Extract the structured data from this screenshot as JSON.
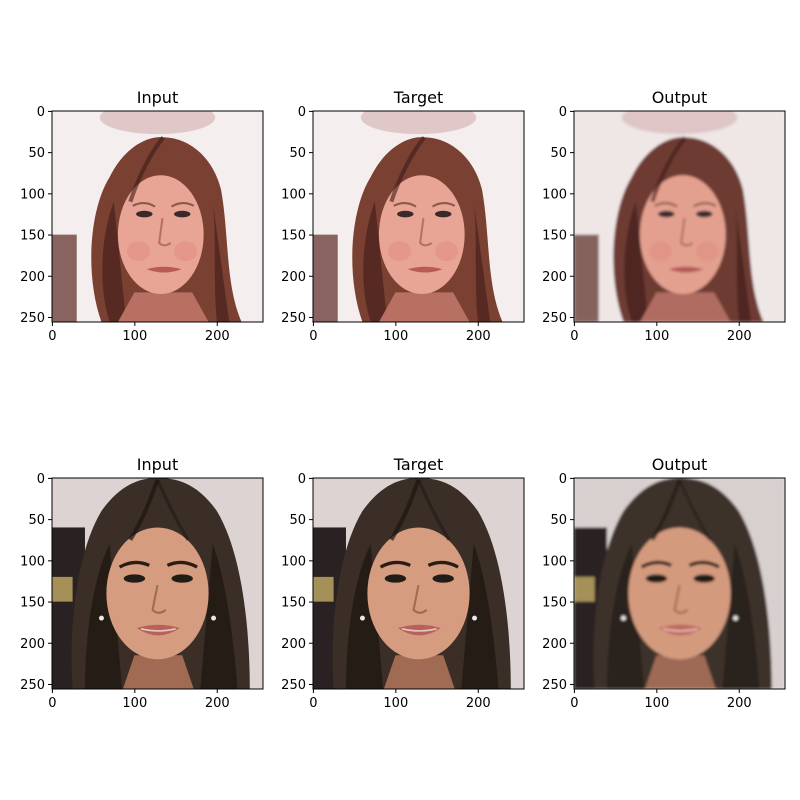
{
  "figure": {
    "background": "#ffffff",
    "axis_color": "#000000"
  },
  "panels": [
    {
      "title": "Input",
      "image": "face-woman-auburn-hair-white-background",
      "image_width": 256,
      "image_height": 256,
      "x_ticks": [
        "0",
        "100",
        "200"
      ],
      "y_ticks": [
        "0",
        "50",
        "100",
        "150",
        "200",
        "250"
      ],
      "palette": {
        "bg": "#f4eeee",
        "hair": "#7a4032",
        "hair_dark": "#3e1c16",
        "skin": "#e8a494",
        "shadow": "#b86f63",
        "lip": "#b85a55",
        "eye": "#3b2a2a"
      }
    },
    {
      "title": "Target",
      "image": "face-woman-auburn-hair-white-background",
      "image_width": 256,
      "image_height": 256,
      "x_ticks": [
        "0",
        "100",
        "200"
      ],
      "y_ticks": [
        "0",
        "50",
        "100",
        "150",
        "200",
        "250"
      ],
      "palette": {
        "bg": "#f4eeee",
        "hair": "#7a4032",
        "hair_dark": "#3e1c16",
        "skin": "#e8a494",
        "shadow": "#b86f63",
        "lip": "#b85a55",
        "eye": "#3b2a2a"
      }
    },
    {
      "title": "Output",
      "image": "face-woman-auburn-hair-white-background-smoothed",
      "image_width": 256,
      "image_height": 256,
      "x_ticks": [
        "0",
        "100",
        "200"
      ],
      "y_ticks": [
        "0",
        "50",
        "100",
        "150",
        "200",
        "250"
      ],
      "palette": {
        "bg": "#efe6e6",
        "hair": "#6e3a31",
        "hair_dark": "#3a1b18",
        "skin": "#e3a08f",
        "shadow": "#b06c61",
        "lip": "#b45a57",
        "eye": "#3b2a30"
      }
    },
    {
      "title": "Input",
      "image": "face-woman-dark-hair-smiling",
      "image_width": 256,
      "image_height": 256,
      "x_ticks": [
        "0",
        "100",
        "200"
      ],
      "y_ticks": [
        "0",
        "50",
        "100",
        "150",
        "200",
        "250"
      ],
      "palette": {
        "bg": "#ddd3d3",
        "hair": "#3a2e28",
        "hair_dark": "#1c1512",
        "skin": "#d69c80",
        "shadow": "#a06a52",
        "lip": "#b8605a",
        "eye": "#221a18"
      }
    },
    {
      "title": "Target",
      "image": "face-woman-dark-hair-smiling",
      "image_width": 256,
      "image_height": 256,
      "x_ticks": [
        "0",
        "100",
        "200"
      ],
      "y_ticks": [
        "0",
        "50",
        "100",
        "150",
        "200",
        "250"
      ],
      "palette": {
        "bg": "#ddd3d3",
        "hair": "#3a2e28",
        "hair_dark": "#1c1512",
        "skin": "#d69c80",
        "shadow": "#a06a52",
        "lip": "#b8605a",
        "eye": "#221a18"
      }
    },
    {
      "title": "Output",
      "image": "face-woman-dark-hair-smiling-smoothed",
      "image_width": 256,
      "image_height": 256,
      "x_ticks": [
        "0",
        "100",
        "200"
      ],
      "y_ticks": [
        "0",
        "50",
        "100",
        "150",
        "200",
        "250"
      ],
      "palette": {
        "bg": "#d8cfcf",
        "hair": "#3d3129",
        "hair_dark": "#221a15",
        "skin": "#d49a7e",
        "shadow": "#9e6a54",
        "lip": "#c0665c",
        "eye": "#241b19"
      }
    }
  ]
}
